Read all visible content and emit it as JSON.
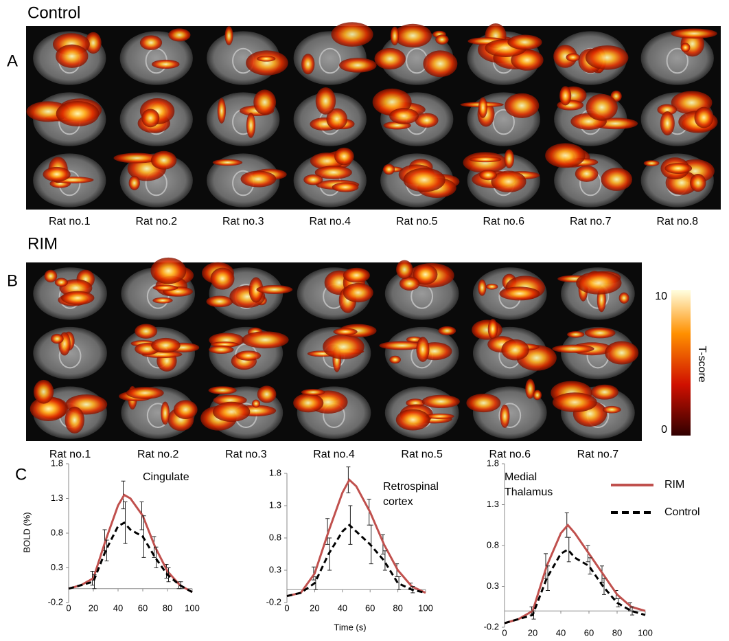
{
  "panel_a": {
    "letter": "A",
    "title": "Control",
    "rats": [
      "Rat no.1",
      "Rat no.2",
      "Rat no.3",
      "Rat no.4",
      "Rat no.5",
      "Rat no.6",
      "Rat no.7",
      "Rat no.8"
    ]
  },
  "panel_b": {
    "letter": "B",
    "title": "RIM",
    "rats": [
      "Rat no.1",
      "Rat no.2",
      "Rat no.3",
      "Rat no.4",
      "Rat no.5",
      "Rat no.6",
      "Rat no.7"
    ]
  },
  "colorbar": {
    "max": "10",
    "min": "0",
    "label": "T-score"
  },
  "panel_c": {
    "letter": "C",
    "y_label": "BOLD (%)",
    "x_label": "Time (s)"
  },
  "chart_data": [
    {
      "type": "line",
      "annotation": [
        "Cingulate"
      ],
      "x": [
        0,
        10,
        20,
        30,
        40,
        45,
        50,
        60,
        70,
        80,
        90,
        100
      ],
      "xlim": [
        0,
        100
      ],
      "xticks": [
        0,
        20,
        40,
        60,
        80,
        100
      ],
      "ylim": [
        -0.2,
        1.8
      ],
      "yticks": [
        -0.2,
        0.3,
        0.8,
        1.3,
        1.8
      ],
      "series": [
        {
          "name": "RIM",
          "color": "#c0504d",
          "dash": false,
          "values": [
            0,
            0.05,
            0.15,
            0.7,
            1.2,
            1.35,
            1.3,
            1.05,
            0.6,
            0.25,
            0.05,
            -0.05
          ],
          "errors": [
            null,
            null,
            0.1,
            0.15,
            null,
            0.2,
            null,
            0.2,
            0.15,
            0.1,
            0.05,
            null
          ]
        },
        {
          "name": "Control",
          "color": "#000000",
          "dash": true,
          "values": [
            0,
            0.05,
            0.1,
            0.55,
            0.9,
            0.95,
            0.85,
            0.75,
            0.45,
            0.2,
            0.05,
            -0.05
          ],
          "errors": [
            null,
            null,
            0.1,
            0.15,
            null,
            0.3,
            null,
            0.3,
            0.15,
            0.1,
            0.05,
            null
          ]
        }
      ]
    },
    {
      "type": "line",
      "annotation": [
        "Retrospinal",
        "cortex"
      ],
      "x": [
        0,
        10,
        20,
        30,
        40,
        45,
        50,
        60,
        70,
        80,
        90,
        100
      ],
      "xlim": [
        0,
        100
      ],
      "xticks": [
        0,
        20,
        40,
        60,
        80,
        100
      ],
      "ylim": [
        -0.2,
        1.8
      ],
      "yticks": [
        -0.2,
        0.3,
        0.8,
        1.3,
        1.8
      ],
      "series": [
        {
          "name": "RIM",
          "color": "#c0504d",
          "dash": false,
          "values": [
            -0.1,
            -0.05,
            0.25,
            0.9,
            1.5,
            1.7,
            1.6,
            1.2,
            0.7,
            0.3,
            0.05,
            -0.05
          ],
          "errors": [
            null,
            null,
            0.1,
            0.2,
            null,
            0.2,
            null,
            0.2,
            0.15,
            0.1,
            0.05,
            null
          ]
        },
        {
          "name": "Control",
          "color": "#000000",
          "dash": true,
          "values": [
            -0.1,
            -0.05,
            0.1,
            0.55,
            0.9,
            1.0,
            0.9,
            0.7,
            0.45,
            0.1,
            0.0,
            -0.05
          ],
          "errors": [
            null,
            null,
            0.1,
            0.25,
            null,
            0.3,
            null,
            0.3,
            0.15,
            0.1,
            0.05,
            null
          ]
        }
      ]
    },
    {
      "type": "line",
      "annotation": [
        "Medial",
        "Thalamus"
      ],
      "x": [
        0,
        10,
        20,
        30,
        40,
        45,
        50,
        60,
        70,
        80,
        90,
        100
      ],
      "xlim": [
        0,
        100
      ],
      "xticks": [
        0,
        20,
        40,
        60,
        80,
        100
      ],
      "ylim": [
        -0.2,
        1.8
      ],
      "yticks": [
        -0.2,
        0.3,
        0.8,
        1.3,
        1.8
      ],
      "series": [
        {
          "name": "RIM",
          "color": "#c0504d",
          "dash": false,
          "values": [
            -0.15,
            -0.1,
            0.0,
            0.55,
            0.95,
            1.05,
            0.95,
            0.7,
            0.45,
            0.2,
            0.05,
            0.0
          ],
          "errors": [
            null,
            null,
            0.05,
            0.15,
            null,
            0.15,
            null,
            0.1,
            0.1,
            0.05,
            0.05,
            null
          ]
        },
        {
          "name": "Control",
          "color": "#000000",
          "dash": true,
          "values": [
            -0.15,
            -0.1,
            -0.05,
            0.4,
            0.7,
            0.75,
            0.65,
            0.55,
            0.3,
            0.1,
            0.0,
            -0.05
          ],
          "errors": [
            null,
            null,
            0.05,
            0.15,
            null,
            0.15,
            null,
            0.1,
            0.1,
            0.05,
            0.05,
            null
          ]
        }
      ]
    }
  ]
}
